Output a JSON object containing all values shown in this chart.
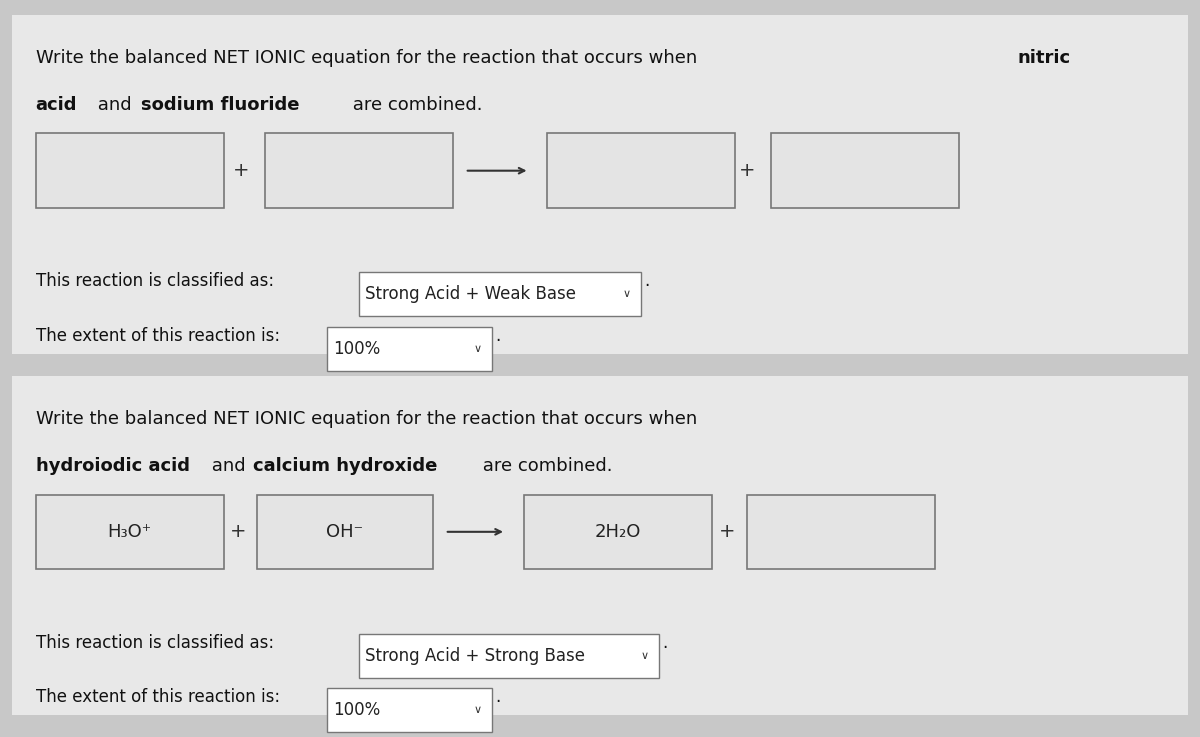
{
  "bg_color_top": "#d9d9d9",
  "bg_color_bottom": "#d9d9d9",
  "panel_bg": "#f0f0f0",
  "box_bg": "#e8e8e8",
  "box_edge": "#888888",
  "panel1": {
    "title_normal": "Write the balanced NET IONIC equation for the reaction that occurs when nitri",
    "title_line2_normal": "acid and ",
    "title_line2_bold": "sodium fluoride",
    "title_line2_end": " are combined.",
    "title_bold_part": "nitric",
    "box1_text": "",
    "box2_text": "",
    "box3_text": "",
    "box4_text": "",
    "classification_label": "This reaction is classified as:",
    "classification_value": "Strong Acid + Weak Base",
    "extent_label": "The extent of this reaction is:",
    "extent_value": "100%"
  },
  "panel2": {
    "title_line1": "Write the balanced NET IONIC equation for the reaction that occurs when",
    "title_line2_bold1": "hydroiodic acid",
    "title_line2_normal1": " and ",
    "title_line2_bold2": "calcium hydroxide",
    "title_line2_end": " are combined.",
    "box1_text": "H₃O⁺",
    "box2_text": "OH⁻",
    "box3_text": "2H₂O",
    "box4_text": "",
    "classification_label": "This reaction is classified as:",
    "classification_value": "Strong Acid + Strong Base",
    "extent_label": "The extent of this reaction is:",
    "extent_value": "100%"
  },
  "font_size_title": 13,
  "font_size_box": 13,
  "font_size_label": 12
}
